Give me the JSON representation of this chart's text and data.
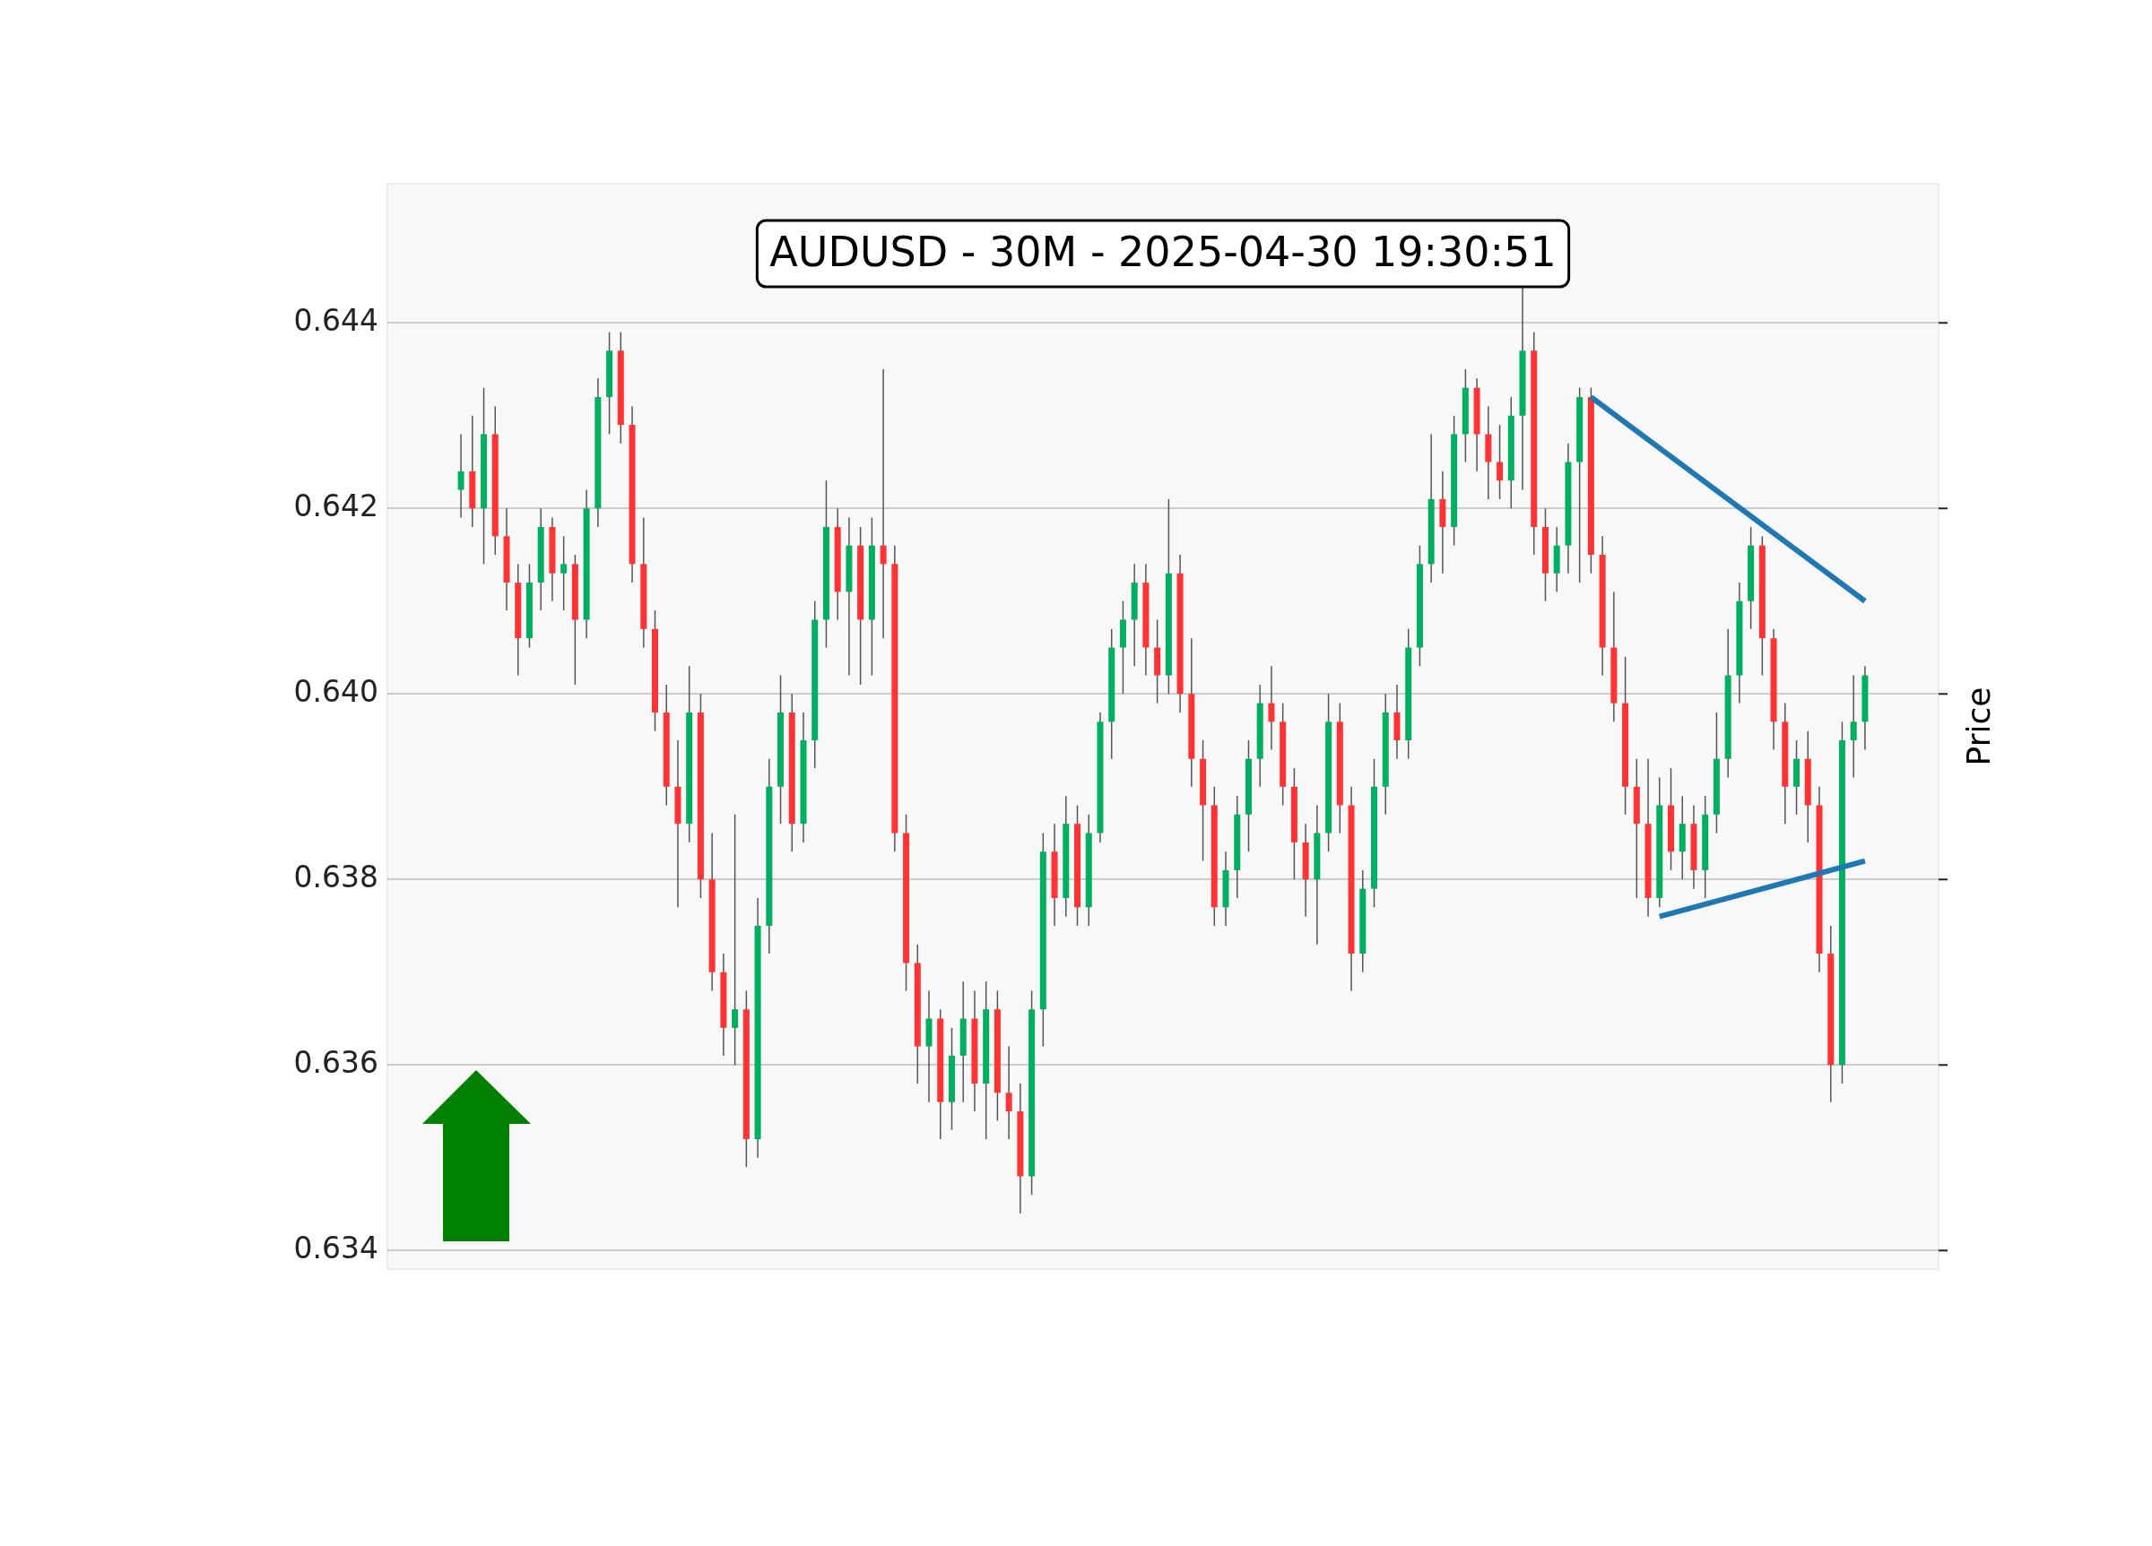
{
  "chart_data": {
    "type": "candlestick",
    "title": "AUDUSD - 30M - 2025-04-30 19:30:51",
    "ylabel": "Price",
    "categories": [
      null,
      null,
      null,
      null,
      null,
      null,
      null,
      null,
      null,
      null,
      null,
      null,
      null,
      null,
      null,
      null,
      null,
      null,
      null,
      null,
      null,
      null,
      null,
      null,
      null,
      null,
      null,
      null,
      null,
      null,
      null,
      null,
      null,
      null,
      null,
      null,
      null,
      null,
      null,
      null,
      null,
      null,
      null,
      null,
      null,
      null,
      null,
      null,
      null,
      null,
      null,
      null,
      null,
      null,
      null,
      null,
      null,
      null,
      null,
      null,
      null,
      null,
      null,
      null,
      null,
      null,
      null,
      null,
      null,
      null,
      null,
      null,
      null,
      null,
      null,
      null,
      null,
      null,
      null,
      null,
      null,
      null,
      null,
      null,
      null,
      null,
      null,
      null,
      null,
      null,
      null,
      null,
      null,
      null,
      null,
      null,
      null,
      null,
      null,
      null,
      null,
      null,
      null,
      null,
      null,
      null,
      null,
      null,
      null,
      null,
      null,
      null,
      null,
      null,
      null,
      null,
      null,
      null,
      null,
      null,
      null,
      null,
      null,
      null
    ],
    "ohlc": [
      [
        0.6422,
        0.6428,
        0.6419,
        0.6424
      ],
      [
        0.6424,
        0.643,
        0.6418,
        0.642
      ],
      [
        0.642,
        0.6433,
        0.6414,
        0.6428
      ],
      [
        0.6428,
        0.6431,
        0.6415,
        0.6417
      ],
      [
        0.6417,
        0.642,
        0.6409,
        0.6412
      ],
      [
        0.6412,
        0.6414,
        0.6402,
        0.6406
      ],
      [
        0.6406,
        0.6414,
        0.6405,
        0.6412
      ],
      [
        0.6412,
        0.642,
        0.6409,
        0.6418
      ],
      [
        0.6418,
        0.6419,
        0.641,
        0.6413
      ],
      [
        0.6413,
        0.6417,
        0.6409,
        0.6414
      ],
      [
        0.6414,
        0.6415,
        0.6401,
        0.6408
      ],
      [
        0.6408,
        0.6422,
        0.6406,
        0.642
      ],
      [
        0.642,
        0.6434,
        0.6418,
        0.6432
      ],
      [
        0.6432,
        0.6439,
        0.6428,
        0.6437
      ],
      [
        0.6437,
        0.6439,
        0.6427,
        0.6429
      ],
      [
        0.6429,
        0.6431,
        0.6412,
        0.6414
      ],
      [
        0.6414,
        0.6419,
        0.6405,
        0.6407
      ],
      [
        0.6407,
        0.6409,
        0.6396,
        0.6398
      ],
      [
        0.6398,
        0.6401,
        0.6388,
        0.639
      ],
      [
        0.639,
        0.6395,
        0.6377,
        0.6386
      ],
      [
        0.6386,
        0.6403,
        0.6384,
        0.6398
      ],
      [
        0.6398,
        0.64,
        0.6378,
        0.638
      ],
      [
        0.638,
        0.6385,
        0.6368,
        0.637
      ],
      [
        0.637,
        0.6372,
        0.6361,
        0.6364
      ],
      [
        0.6364,
        0.6387,
        0.636,
        0.6366
      ],
      [
        0.6366,
        0.6368,
        0.6349,
        0.6352
      ],
      [
        0.6352,
        0.6378,
        0.635,
        0.6375
      ],
      [
        0.6375,
        0.6393,
        0.6372,
        0.639
      ],
      [
        0.639,
        0.6402,
        0.6386,
        0.6398
      ],
      [
        0.6398,
        0.64,
        0.6383,
        0.6386
      ],
      [
        0.6386,
        0.6398,
        0.6384,
        0.6395
      ],
      [
        0.6395,
        0.641,
        0.6392,
        0.6408
      ],
      [
        0.6408,
        0.6423,
        0.6405,
        0.6418
      ],
      [
        0.6418,
        0.642,
        0.6408,
        0.6411
      ],
      [
        0.6411,
        0.6419,
        0.6402,
        0.6416
      ],
      [
        0.6416,
        0.6418,
        0.6401,
        0.6408
      ],
      [
        0.6408,
        0.6419,
        0.6402,
        0.6416
      ],
      [
        0.6416,
        0.6435,
        0.6406,
        0.6414
      ],
      [
        0.6414,
        0.6416,
        0.6383,
        0.6385
      ],
      [
        0.6385,
        0.6387,
        0.6368,
        0.6371
      ],
      [
        0.6371,
        0.6373,
        0.6358,
        0.6362
      ],
      [
        0.6362,
        0.6368,
        0.6356,
        0.6365
      ],
      [
        0.6365,
        0.6366,
        0.6352,
        0.6356
      ],
      [
        0.6356,
        0.6364,
        0.6353,
        0.6361
      ],
      [
        0.6361,
        0.6369,
        0.6356,
        0.6365
      ],
      [
        0.6365,
        0.6368,
        0.6355,
        0.6358
      ],
      [
        0.6358,
        0.6369,
        0.6352,
        0.6366
      ],
      [
        0.6366,
        0.6368,
        0.6354,
        0.6357
      ],
      [
        0.6357,
        0.6362,
        0.6352,
        0.6355
      ],
      [
        0.6355,
        0.6358,
        0.6344,
        0.6348
      ],
      [
        0.6348,
        0.6368,
        0.6346,
        0.6366
      ],
      [
        0.6366,
        0.6385,
        0.6362,
        0.6383
      ],
      [
        0.6383,
        0.6386,
        0.6375,
        0.6378
      ],
      [
        0.6378,
        0.6389,
        0.6376,
        0.6386
      ],
      [
        0.6386,
        0.6388,
        0.6375,
        0.6377
      ],
      [
        0.6377,
        0.6387,
        0.6375,
        0.6385
      ],
      [
        0.6385,
        0.6398,
        0.6384,
        0.6397
      ],
      [
        0.6397,
        0.6407,
        0.6393,
        0.6405
      ],
      [
        0.6405,
        0.641,
        0.64,
        0.6408
      ],
      [
        0.6408,
        0.6414,
        0.6403,
        0.6412
      ],
      [
        0.6412,
        0.6414,
        0.6402,
        0.6405
      ],
      [
        0.6405,
        0.6408,
        0.6399,
        0.6402
      ],
      [
        0.6402,
        0.6421,
        0.64,
        0.6413
      ],
      [
        0.6413,
        0.6415,
        0.6398,
        0.64
      ],
      [
        0.64,
        0.6406,
        0.639,
        0.6393
      ],
      [
        0.6393,
        0.6395,
        0.6382,
        0.6388
      ],
      [
        0.6388,
        0.639,
        0.6375,
        0.6377
      ],
      [
        0.6377,
        0.6383,
        0.6375,
        0.6381
      ],
      [
        0.6381,
        0.6389,
        0.6378,
        0.6387
      ],
      [
        0.6387,
        0.6395,
        0.6383,
        0.6393
      ],
      [
        0.6393,
        0.6401,
        0.639,
        0.6399
      ],
      [
        0.6399,
        0.6403,
        0.6394,
        0.6397
      ],
      [
        0.6397,
        0.6399,
        0.6388,
        0.639
      ],
      [
        0.639,
        0.6392,
        0.638,
        0.6384
      ],
      [
        0.6384,
        0.6386,
        0.6376,
        0.638
      ],
      [
        0.638,
        0.6388,
        0.6373,
        0.6385
      ],
      [
        0.6385,
        0.64,
        0.6383,
        0.6397
      ],
      [
        0.6397,
        0.6399,
        0.6385,
        0.6388
      ],
      [
        0.6388,
        0.639,
        0.6368,
        0.6372
      ],
      [
        0.6372,
        0.6381,
        0.637,
        0.6379
      ],
      [
        0.6379,
        0.6393,
        0.6377,
        0.639
      ],
      [
        0.639,
        0.64,
        0.6387,
        0.6398
      ],
      [
        0.6398,
        0.6401,
        0.6393,
        0.6395
      ],
      [
        0.6395,
        0.6407,
        0.6393,
        0.6405
      ],
      [
        0.6405,
        0.6416,
        0.6403,
        0.6414
      ],
      [
        0.6414,
        0.6428,
        0.6412,
        0.6421
      ],
      [
        0.6421,
        0.6424,
        0.6413,
        0.6418
      ],
      [
        0.6418,
        0.643,
        0.6416,
        0.6428
      ],
      [
        0.6428,
        0.6435,
        0.6425,
        0.6433
      ],
      [
        0.6433,
        0.6434,
        0.6424,
        0.6428
      ],
      [
        0.6428,
        0.6431,
        0.6421,
        0.6425
      ],
      [
        0.6425,
        0.6429,
        0.6421,
        0.6423
      ],
      [
        0.6423,
        0.6432,
        0.642,
        0.643
      ],
      [
        0.643,
        0.6444,
        0.6422,
        0.6437
      ],
      [
        0.6437,
        0.6439,
        0.6415,
        0.6418
      ],
      [
        0.6418,
        0.642,
        0.641,
        0.6413
      ],
      [
        0.6413,
        0.6418,
        0.6411,
        0.6416
      ],
      [
        0.6416,
        0.6427,
        0.6413,
        0.6425
      ],
      [
        0.6425,
        0.6433,
        0.6412,
        0.6432
      ],
      [
        0.6432,
        0.6433,
        0.6413,
        0.6415
      ],
      [
        0.6415,
        0.6417,
        0.6402,
        0.6405
      ],
      [
        0.6405,
        0.6411,
        0.6397,
        0.6399
      ],
      [
        0.6399,
        0.6404,
        0.6387,
        0.639
      ],
      [
        0.639,
        0.6393,
        0.6378,
        0.6386
      ],
      [
        0.6386,
        0.6393,
        0.6376,
        0.6378
      ],
      [
        0.6378,
        0.6391,
        0.6377,
        0.6388
      ],
      [
        0.6388,
        0.6392,
        0.6381,
        0.6383
      ],
      [
        0.6383,
        0.6389,
        0.638,
        0.6386
      ],
      [
        0.6386,
        0.6388,
        0.6379,
        0.6381
      ],
      [
        0.6381,
        0.6389,
        0.6378,
        0.6387
      ],
      [
        0.6387,
        0.6398,
        0.6385,
        0.6393
      ],
      [
        0.6393,
        0.6407,
        0.6391,
        0.6402
      ],
      [
        0.6402,
        0.6412,
        0.6399,
        0.641
      ],
      [
        0.641,
        0.6418,
        0.6407,
        0.6416
      ],
      [
        0.6416,
        0.6417,
        0.6402,
        0.6406
      ],
      [
        0.6406,
        0.6407,
        0.6394,
        0.6397
      ],
      [
        0.6397,
        0.6399,
        0.6386,
        0.639
      ],
      [
        0.639,
        0.6395,
        0.6387,
        0.6393
      ],
      [
        0.6393,
        0.6396,
        0.6384,
        0.6388
      ],
      [
        0.6388,
        0.639,
        0.637,
        0.6372
      ],
      [
        0.6372,
        0.6375,
        0.6356,
        0.636
      ],
      [
        0.636,
        0.6397,
        0.6358,
        0.6395
      ],
      [
        0.6395,
        0.6402,
        0.6391,
        0.6397
      ],
      [
        0.6397,
        0.6403,
        0.6394,
        0.6402
      ]
    ],
    "colors": [
      "#00b060",
      "#ff3333",
      "#00b060",
      "#ff3333",
      "#ff3333",
      "#ff3333",
      "#00b060",
      "#00b060",
      "#ff3333",
      "#00b060",
      "#ff3333",
      "#00b060",
      "#00b060",
      "#00b060",
      "#ff3333",
      "#ff3333",
      "#ff3333",
      "#ff3333",
      "#ff3333",
      "#ff3333",
      "#00b060",
      "#ff3333",
      "#ff3333",
      "#ff3333",
      "#00b060",
      "#ff3333",
      "#00b060",
      "#00b060",
      "#00b060",
      "#ff3333",
      "#00b060",
      "#00b060",
      "#00b060",
      "#ff3333",
      "#00b060",
      "#ff3333",
      "#00b060",
      "#ff3333",
      "#ff3333",
      "#ff3333",
      "#ff3333",
      "#00b060",
      "#ff3333",
      "#00b060",
      "#00b060",
      "#ff3333",
      "#00b060",
      "#ff3333",
      "#ff3333",
      "#ff3333",
      "#00b060",
      "#00b060",
      "#ff3333",
      "#00b060",
      "#ff3333",
      "#00b060",
      "#00b060",
      "#00b060",
      "#00b060",
      "#00b060",
      "#ff3333",
      "#ff3333",
      "#00b060",
      "#ff3333",
      "#ff3333",
      "#ff3333",
      "#ff3333",
      "#00b060",
      "#00b060",
      "#00b060",
      "#00b060",
      "#ff3333",
      "#ff3333",
      "#ff3333",
      "#ff3333",
      "#00b060",
      "#00b060",
      "#ff3333",
      "#ff3333",
      "#00b060",
      "#00b060",
      "#00b060",
      "#ff3333",
      "#00b060",
      "#00b060",
      "#00b060",
      "#ff3333",
      "#00b060",
      "#00b060",
      "#ff3333",
      "#ff3333",
      "#ff3333",
      "#00b060",
      "#00b060",
      "#ff3333",
      "#ff3333",
      "#00b060",
      "#00b060",
      "#00b060",
      "#ff3333",
      "#ff3333",
      "#ff3333",
      "#ff3333",
      "#ff3333",
      "#ff3333",
      "#00b060",
      "#ff3333",
      "#00b060",
      "#ff3333",
      "#00b060",
      "#00b060",
      "#00b060",
      "#00b060",
      "#00b060",
      "#ff3333",
      "#ff3333",
      "#ff3333",
      "#00b060",
      "#ff3333",
      "#ff3333",
      "#ff3333",
      "#00b060",
      "#00b060",
      "#00b060"
    ],
    "series": [
      {
        "type": "line",
        "color": "#1f77b4",
        "values": [
          null,
          null,
          null,
          null,
          null,
          null,
          null,
          null,
          null,
          null,
          null,
          null,
          null,
          null,
          null,
          null,
          null,
          null,
          null,
          null,
          null,
          null,
          null,
          null,
          null,
          null,
          null,
          null,
          null,
          null,
          null,
          null,
          null,
          null,
          null,
          null,
          null,
          null,
          null,
          null,
          null,
          null,
          null,
          null,
          null,
          null,
          null,
          null,
          null,
          null,
          null,
          null,
          null,
          null,
          null,
          null,
          null,
          null,
          null,
          null,
          null,
          null,
          null,
          null,
          null,
          null,
          null,
          null,
          null,
          null,
          null,
          null,
          null,
          null,
          null,
          null,
          null,
          null,
          null,
          null,
          null,
          null,
          null,
          null,
          null,
          null,
          null,
          null,
          null,
          null,
          null,
          null,
          null,
          null,
          null,
          null,
          null,
          null,
          null,
          0.6432,
          null,
          null,
          null,
          null,
          null,
          null,
          null,
          null,
          null,
          null,
          null,
          null,
          null,
          null,
          null,
          null,
          null,
          null,
          null,
          null,
          null,
          null,
          null,
          0.641
        ]
      },
      {
        "type": "line",
        "color": "#1f77b4",
        "values": [
          null,
          null,
          null,
          null,
          null,
          null,
          null,
          null,
          null,
          null,
          null,
          null,
          null,
          null,
          null,
          null,
          null,
          null,
          null,
          null,
          null,
          null,
          null,
          null,
          null,
          null,
          null,
          null,
          null,
          null,
          null,
          null,
          null,
          null,
          null,
          null,
          null,
          null,
          null,
          null,
          null,
          null,
          null,
          null,
          null,
          null,
          null,
          null,
          null,
          null,
          null,
          null,
          null,
          null,
          null,
          null,
          null,
          null,
          null,
          null,
          null,
          null,
          null,
          null,
          null,
          null,
          null,
          null,
          null,
          null,
          null,
          null,
          null,
          null,
          null,
          null,
          null,
          null,
          null,
          null,
          null,
          null,
          null,
          null,
          null,
          null,
          null,
          null,
          null,
          null,
          null,
          null,
          null,
          null,
          null,
          null,
          null,
          null,
          null,
          null,
          null,
          null,
          null,
          null,
          null,
          0.6376,
          null,
          null,
          null,
          null,
          null,
          null,
          null,
          null,
          null,
          null,
          null,
          null,
          null,
          null,
          null,
          null,
          null,
          0.6382
        ]
      }
    ],
    "ylim": [
      0.6338,
      0.6455
    ],
    "yticks": [
      0.634,
      0.636,
      0.638,
      {
        "value": 0.64,
        "label": "0.640"
      },
      0.642,
      0.644
    ],
    "grid": "y",
    "legend": false,
    "tick_labels": "y"
  }
}
